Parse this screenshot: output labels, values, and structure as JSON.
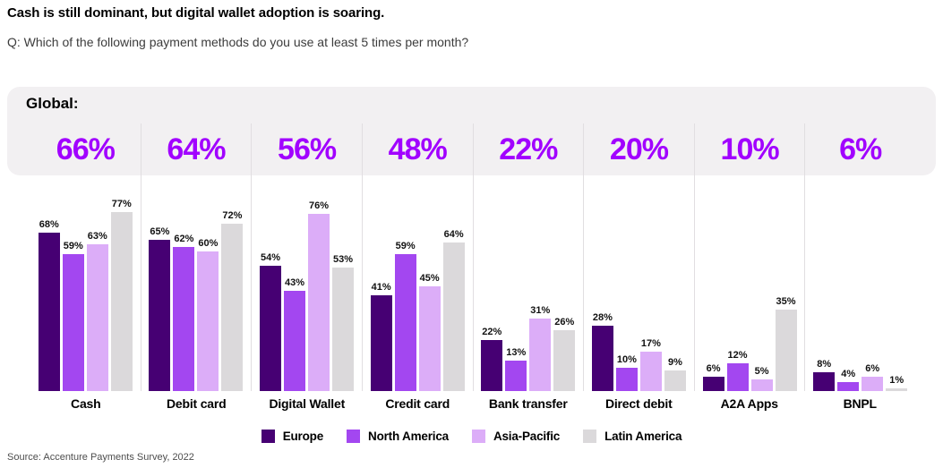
{
  "header": {
    "title": "Cash is still dominant, but digital wallet adoption is soaring.",
    "question": "Q: Which of the following payment methods do you use at least 5 times per month?"
  },
  "panel": {
    "global_label": "Global:"
  },
  "chart_data": {
    "type": "bar",
    "title": "Cash is still dominant, but digital wallet adoption is soaring.",
    "subtitle": "Q: Which of the following payment methods do you use at least 5 times per month?",
    "categories": [
      "Cash",
      "Debit card",
      "Digital Wallet",
      "Credit card",
      "Bank transfer",
      "Direct debit",
      "A2A Apps",
      "BNPL"
    ],
    "global_values": [
      66,
      64,
      56,
      48,
      22,
      20,
      10,
      6
    ],
    "series": [
      {
        "name": "Europe",
        "color": "#460073",
        "values": [
          68,
          65,
          54,
          41,
          22,
          28,
          6,
          8
        ]
      },
      {
        "name": "North America",
        "color": "#A347F0",
        "values": [
          59,
          62,
          43,
          59,
          13,
          10,
          12,
          4
        ]
      },
      {
        "name": "Asia-Pacific",
        "color": "#DCADF8",
        "values": [
          63,
          60,
          76,
          45,
          31,
          17,
          5,
          6
        ]
      },
      {
        "name": "Latin America",
        "color": "#DBD9DB",
        "values": [
          77,
          72,
          53,
          64,
          26,
          9,
          35,
          1
        ]
      }
    ],
    "value_suffix": "%",
    "ylim": [
      0,
      100
    ],
    "grid": false,
    "legend_position": "bottom"
  },
  "source": "Source: Accenture Payments Survey, 2022",
  "colors": {
    "accent_percent_text": "#A100FF",
    "panel_background": "#F2F0F2",
    "column_divider": "#E1DEE1"
  }
}
